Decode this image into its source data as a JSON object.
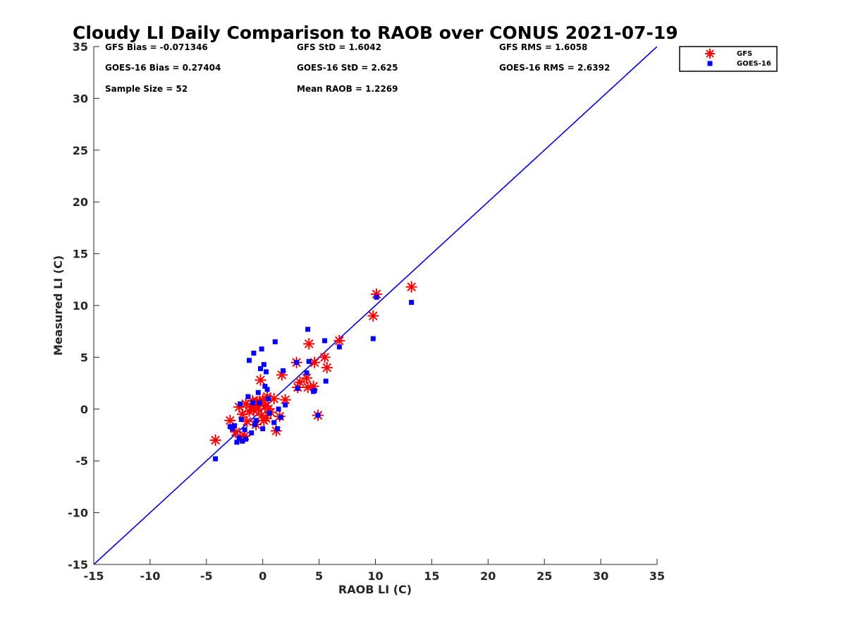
{
  "chart_data": {
    "type": "scatter",
    "title": "Cloudy LI Daily Comparison to RAOB over CONUS 2021-07-19",
    "xlabel": "RAOB LI (C)",
    "ylabel": "Measured LI (C)",
    "xlim": [
      -15,
      35
    ],
    "ylim": [
      -15,
      35
    ],
    "xticks": [
      -15,
      -10,
      -5,
      0,
      5,
      10,
      15,
      20,
      25,
      30,
      35
    ],
    "yticks": [
      -15,
      -10,
      -5,
      0,
      5,
      10,
      15,
      20,
      25,
      30,
      35
    ],
    "grid": false,
    "legend_position": "top-right, outside plot",
    "reference_line": {
      "x": [
        -15,
        35
      ],
      "y": [
        -15,
        35
      ],
      "color": "#0000dd"
    },
    "stats": [
      [
        "GFS Bias = -0.071346",
        "GFS StD = 1.6042",
        "GFS RMS = 1.6058"
      ],
      [
        "GOES-16 Bias = 0.27404",
        "GOES-16 StD = 2.625",
        "GOES-16 RMS = 2.6392"
      ],
      [
        "Sample Size = 52",
        "Mean RAOB = 1.2269",
        ""
      ]
    ],
    "series": [
      {
        "name": "GFS",
        "marker": "asterisk",
        "color": "#ff0000",
        "points": [
          [
            -4.2,
            -3.0
          ],
          [
            -2.9,
            -1.1
          ],
          [
            -2.4,
            -2.2
          ],
          [
            -2.1,
            0.2
          ],
          [
            -2.0,
            -2.7
          ],
          [
            -1.8,
            -0.5
          ],
          [
            -1.6,
            -2.6
          ],
          [
            -1.5,
            0.5
          ],
          [
            -1.4,
            -1.2
          ],
          [
            -1.2,
            -0.2
          ],
          [
            -1.0,
            0.2
          ],
          [
            -0.9,
            0.8
          ],
          [
            -0.8,
            -0.1
          ],
          [
            -0.7,
            0.4
          ],
          [
            -0.6,
            -1.5
          ],
          [
            -0.5,
            0.7
          ],
          [
            -0.4,
            0.0
          ],
          [
            -0.3,
            0.6
          ],
          [
            -0.2,
            2.8
          ],
          [
            -0.1,
            -0.6
          ],
          [
            0.0,
            0.9
          ],
          [
            0.1,
            -1.1
          ],
          [
            0.2,
            0.3
          ],
          [
            0.3,
            -0.9
          ],
          [
            0.4,
            1.2
          ],
          [
            0.5,
            0.0
          ],
          [
            0.7,
            -0.3
          ],
          [
            1.0,
            1.0
          ],
          [
            1.2,
            -2.1
          ],
          [
            1.5,
            -0.7
          ],
          [
            1.7,
            3.3
          ],
          [
            2.0,
            0.9
          ],
          [
            3.0,
            4.5
          ],
          [
            3.1,
            2.1
          ],
          [
            3.3,
            2.6
          ],
          [
            3.9,
            3.0
          ],
          [
            4.0,
            2.1
          ],
          [
            4.1,
            6.3
          ],
          [
            4.5,
            2.2
          ],
          [
            4.6,
            4.5
          ],
          [
            4.9,
            -0.6
          ],
          [
            5.5,
            5.0
          ],
          [
            5.7,
            4.0
          ],
          [
            6.8,
            6.6
          ],
          [
            9.8,
            9.0
          ],
          [
            10.1,
            11.1
          ],
          [
            13.2,
            11.8
          ]
        ]
      },
      {
        "name": "GOES-16",
        "marker": "square",
        "color": "#0000ff",
        "points": [
          [
            -4.2,
            -4.8
          ],
          [
            -2.9,
            -1.7
          ],
          [
            -2.7,
            -1.9
          ],
          [
            -2.5,
            -1.6
          ],
          [
            -2.3,
            -3.2
          ],
          [
            -2.1,
            -2.8
          ],
          [
            -2.0,
            0.5
          ],
          [
            -1.9,
            -1.0
          ],
          [
            -1.8,
            -3.1
          ],
          [
            -1.6,
            -2.0
          ],
          [
            -1.5,
            -2.9
          ],
          [
            -1.3,
            1.2
          ],
          [
            -1.2,
            4.7
          ],
          [
            -1.0,
            -2.3
          ],
          [
            -0.9,
            0.6
          ],
          [
            -0.8,
            5.4
          ],
          [
            -0.7,
            -1.5
          ],
          [
            -0.6,
            -1.1
          ],
          [
            -0.4,
            1.6
          ],
          [
            -0.3,
            0.6
          ],
          [
            -0.2,
            3.9
          ],
          [
            -0.1,
            5.8
          ],
          [
            0.0,
            -1.9
          ],
          [
            0.1,
            4.3
          ],
          [
            0.2,
            2.2
          ],
          [
            0.3,
            3.6
          ],
          [
            0.4,
            1.9
          ],
          [
            0.5,
            1.0
          ],
          [
            0.6,
            -0.4
          ],
          [
            1.0,
            -1.3
          ],
          [
            1.1,
            6.5
          ],
          [
            1.3,
            -1.9
          ],
          [
            1.4,
            0.0
          ],
          [
            1.6,
            -0.8
          ],
          [
            1.8,
            3.7
          ],
          [
            2.0,
            0.4
          ],
          [
            3.0,
            4.5
          ],
          [
            3.1,
            2.0
          ],
          [
            3.9,
            3.5
          ],
          [
            4.0,
            7.7
          ],
          [
            4.1,
            4.6
          ],
          [
            4.5,
            1.7
          ],
          [
            4.6,
            1.8
          ],
          [
            4.9,
            -0.6
          ],
          [
            5.5,
            6.6
          ],
          [
            5.6,
            2.7
          ],
          [
            6.8,
            6.0
          ],
          [
            9.8,
            6.8
          ],
          [
            10.1,
            10.8
          ],
          [
            13.2,
            10.3
          ]
        ]
      }
    ]
  }
}
